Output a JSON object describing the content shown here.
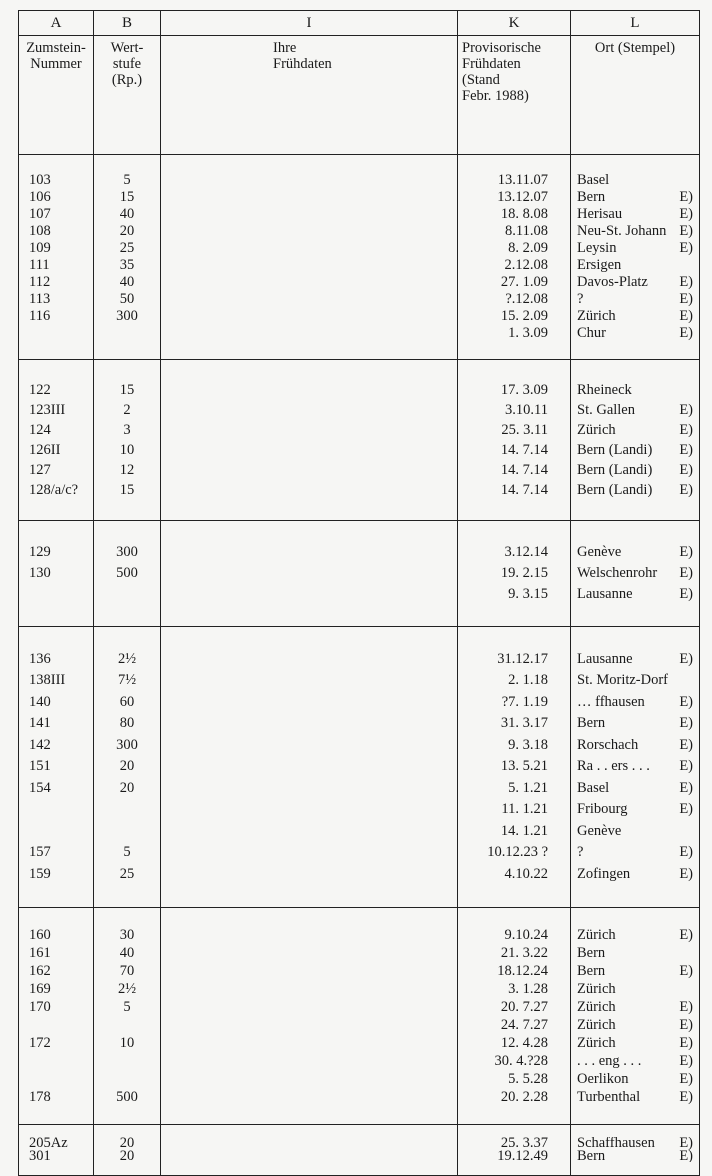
{
  "header": {
    "letters": [
      "A",
      "B",
      "I",
      "K",
      "L"
    ],
    "titles": {
      "a": [
        "Zumstein-",
        "Nummer"
      ],
      "b": [
        "Wert-",
        "stufe",
        "(Rp.)"
      ],
      "i": [
        "Ihre",
        "Frühdaten"
      ],
      "k": [
        "Provisorische",
        "Frühdaten",
        "(Stand",
        "Febr. 1988)"
      ],
      "l": [
        "Ort (Stempel)"
      ]
    }
  },
  "groups": [
    [
      {
        "a": "103",
        "b": "5",
        "k": "13.11.07",
        "l": "Basel",
        "e": ""
      },
      {
        "a": "106",
        "b": "15",
        "k": "13.12.07",
        "l": "Bern",
        "e": "E)"
      },
      {
        "a": "107",
        "b": "40",
        "k": "18. 8.08",
        "l": "Herisau",
        "e": "E)"
      },
      {
        "a": "108",
        "b": "20",
        "k": "8.11.08",
        "l": "Neu-St. Johann",
        "e": "E)"
      },
      {
        "a": "109",
        "b": "25",
        "k": "8. 2.09",
        "l": "Leysin",
        "e": "E)"
      },
      {
        "a": "111",
        "b": "35",
        "k": "2.12.08",
        "l": "Ersigen",
        "e": ""
      },
      {
        "a": "112",
        "b": "40",
        "k": "27. 1.09",
        "l": "Davos-Platz",
        "e": "E)"
      },
      {
        "a": "113",
        "b": "50",
        "k": "?.12.08",
        "l": "?",
        "e": "E)"
      },
      {
        "a": "116",
        "b": "300",
        "k": "15. 2.09",
        "l": "Zürich",
        "e": "E)"
      },
      {
        "a": "",
        "b": "",
        "k": "1. 3.09",
        "l": "Chur",
        "e": "E)"
      }
    ],
    [
      {
        "a": "122",
        "b": "15",
        "k": "17. 3.09",
        "l": "Rheineck",
        "e": ""
      },
      {
        "a": "123III",
        "b": "2",
        "k": "3.10.11",
        "l": "St. Gallen",
        "e": "E)"
      },
      {
        "a": "124",
        "b": "3",
        "k": "25. 3.11",
        "l": "Zürich",
        "e": "E)"
      },
      {
        "a": "126II",
        "b": "10",
        "k": "14. 7.14",
        "l": "Bern (Landi)",
        "e": "E)"
      },
      {
        "a": "127",
        "b": "12",
        "k": "14. 7.14",
        "l": "Bern (Landi)",
        "e": "E)"
      },
      {
        "a": "128/a/c?",
        "b": "15",
        "k": "14. 7.14",
        "l": "Bern (Landi)",
        "e": "E)"
      }
    ],
    [
      {
        "a": "129",
        "b": "300",
        "k": "3.12.14",
        "l": "Genève",
        "e": "E)"
      },
      {
        "a": "130",
        "b": "500",
        "k": "19. 2.15",
        "l": "Welschenrohr",
        "e": "E)"
      },
      {
        "a": "",
        "b": "",
        "k": "9. 3.15",
        "l": "Lausanne",
        "e": "E)"
      }
    ],
    [
      {
        "a": "136",
        "b": "2½",
        "k": "31.12.17",
        "l": "Lausanne",
        "e": "E)"
      },
      {
        "a": "138III",
        "b": "7½",
        "k": "2. 1.18",
        "l": "St. Moritz-Dorf",
        "e": ""
      },
      {
        "a": "140",
        "b": "60",
        "k": "?7. 1.19",
        "l": "… ffhausen",
        "e": "E)"
      },
      {
        "a": "141",
        "b": "80",
        "k": "31. 3.17",
        "l": "Bern",
        "e": "E)"
      },
      {
        "a": "142",
        "b": "300",
        "k": "9. 3.18",
        "l": "Rorschach",
        "e": "E)"
      },
      {
        "a": "151",
        "b": "20",
        "k": "13. 5.21",
        "l": "Ra . . ers . . .",
        "e": "E)"
      },
      {
        "a": "154",
        "b": "20",
        "k": "5. 1.21",
        "l": "Basel",
        "e": "E)"
      },
      {
        "a": "",
        "b": "",
        "k": "11. 1.21",
        "l": "Fribourg",
        "e": "E)"
      },
      {
        "a": "",
        "b": "",
        "k": "14. 1.21",
        "l": "Genève",
        "e": ""
      },
      {
        "a": "157",
        "b": "5",
        "k": "10.12.23 ?",
        "l": "?",
        "e": "E)"
      },
      {
        "a": "159",
        "b": "25",
        "k": "4.10.22",
        "l": "Zofingen",
        "e": "E)"
      }
    ],
    [
      {
        "a": "160",
        "b": "30",
        "k": "9.10.24",
        "l": "Zürich",
        "e": "E)"
      },
      {
        "a": "161",
        "b": "40",
        "k": "21. 3.22",
        "l": "Bern",
        "e": ""
      },
      {
        "a": "162",
        "b": "70",
        "k": "18.12.24",
        "l": "Bern",
        "e": "E)"
      },
      {
        "a": "169",
        "b": "2½",
        "k": "3. 1.28",
        "l": "Zürich",
        "e": ""
      },
      {
        "a": "170",
        "b": "5",
        "k": "20. 7.27",
        "l": "Zürich",
        "e": "E)"
      },
      {
        "a": "",
        "b": "",
        "k": "24. 7.27",
        "l": "Zürich",
        "e": "E)"
      },
      {
        "a": "172",
        "b": "10",
        "k": "12. 4.28",
        "l": "Zürich",
        "e": "E)"
      },
      {
        "a": "",
        "b": "",
        "k": "30. 4.?28",
        "l": ". . . eng . . .",
        "e": "E)"
      },
      {
        "a": "",
        "b": "",
        "k": "5. 5.28",
        "l": "Oerlikon",
        "e": "E)"
      },
      {
        "a": "178",
        "b": "500",
        "k": "20. 2.28",
        "l": "Turbenthal",
        "e": "E)"
      }
    ],
    [
      {
        "a": "205Az",
        "b": "20",
        "k": "25. 3.37",
        "l": "Schaffhausen",
        "e": "E)"
      },
      {
        "a": "301",
        "b": "20",
        "k": "19.12.49",
        "l": "Bern",
        "e": "E)"
      }
    ]
  ]
}
